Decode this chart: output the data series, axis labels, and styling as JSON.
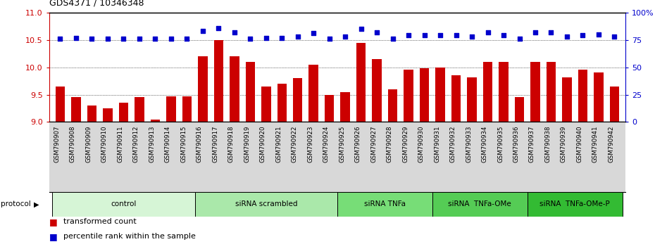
{
  "title": "GDS4371 / 10346348",
  "samples": [
    "GSM790907",
    "GSM790908",
    "GSM790909",
    "GSM790910",
    "GSM790911",
    "GSM790912",
    "GSM790913",
    "GSM790914",
    "GSM790915",
    "GSM790916",
    "GSM790917",
    "GSM790918",
    "GSM790919",
    "GSM790920",
    "GSM790921",
    "GSM790922",
    "GSM790923",
    "GSM790924",
    "GSM790925",
    "GSM790926",
    "GSM790927",
    "GSM790928",
    "GSM790929",
    "GSM790930",
    "GSM790931",
    "GSM790932",
    "GSM790933",
    "GSM790934",
    "GSM790935",
    "GSM790936",
    "GSM790937",
    "GSM790938",
    "GSM790939",
    "GSM790940",
    "GSM790941",
    "GSM790942"
  ],
  "bar_values": [
    9.65,
    9.45,
    9.3,
    9.25,
    9.35,
    9.45,
    9.05,
    9.47,
    9.47,
    10.2,
    10.5,
    10.2,
    10.1,
    9.65,
    9.7,
    9.8,
    10.05,
    9.5,
    9.55,
    10.44,
    10.15,
    9.6,
    9.95,
    9.98,
    10.0,
    9.85,
    9.82,
    10.1,
    10.1,
    9.46,
    10.1,
    10.1,
    9.82,
    9.95,
    9.9,
    9.65
  ],
  "dot_values": [
    76,
    77,
    76,
    76,
    76,
    76,
    76,
    76,
    76,
    83,
    86,
    82,
    76,
    77,
    77,
    78,
    81,
    76,
    78,
    85,
    82,
    76,
    79,
    79,
    79,
    79,
    78,
    82,
    79,
    76,
    82,
    82,
    78,
    79,
    80,
    78
  ],
  "groups": [
    {
      "label": "control",
      "start": 0,
      "end": 9,
      "color": "#d6f5d6"
    },
    {
      "label": "siRNA scrambled",
      "start": 9,
      "end": 18,
      "color": "#aae8aa"
    },
    {
      "label": "siRNA TNFa",
      "start": 18,
      "end": 24,
      "color": "#77dd77"
    },
    {
      "label": "siRNA  TNFa-OMe",
      "start": 24,
      "end": 30,
      "color": "#55cc55"
    },
    {
      "label": "siRNA  TNFa-OMe-P",
      "start": 30,
      "end": 36,
      "color": "#33bb33"
    }
  ],
  "ylim_left": [
    9.0,
    11.0
  ],
  "ylim_right": [
    0,
    100
  ],
  "yticks_left": [
    9.0,
    9.5,
    10.0,
    10.5,
    11.0
  ],
  "yticks_right": [
    0,
    25,
    50,
    75,
    100
  ],
  "ytick_right_labels": [
    "0",
    "25",
    "50",
    "75",
    "100%"
  ],
  "bar_color": "#cc0000",
  "dot_color": "#0000cc",
  "bar_bottom": 9.0,
  "xticklabel_bg": "#d8d8d8",
  "protocol_label": "protocol",
  "legend_bar": "transformed count",
  "legend_dot": "percentile rank within the sample"
}
